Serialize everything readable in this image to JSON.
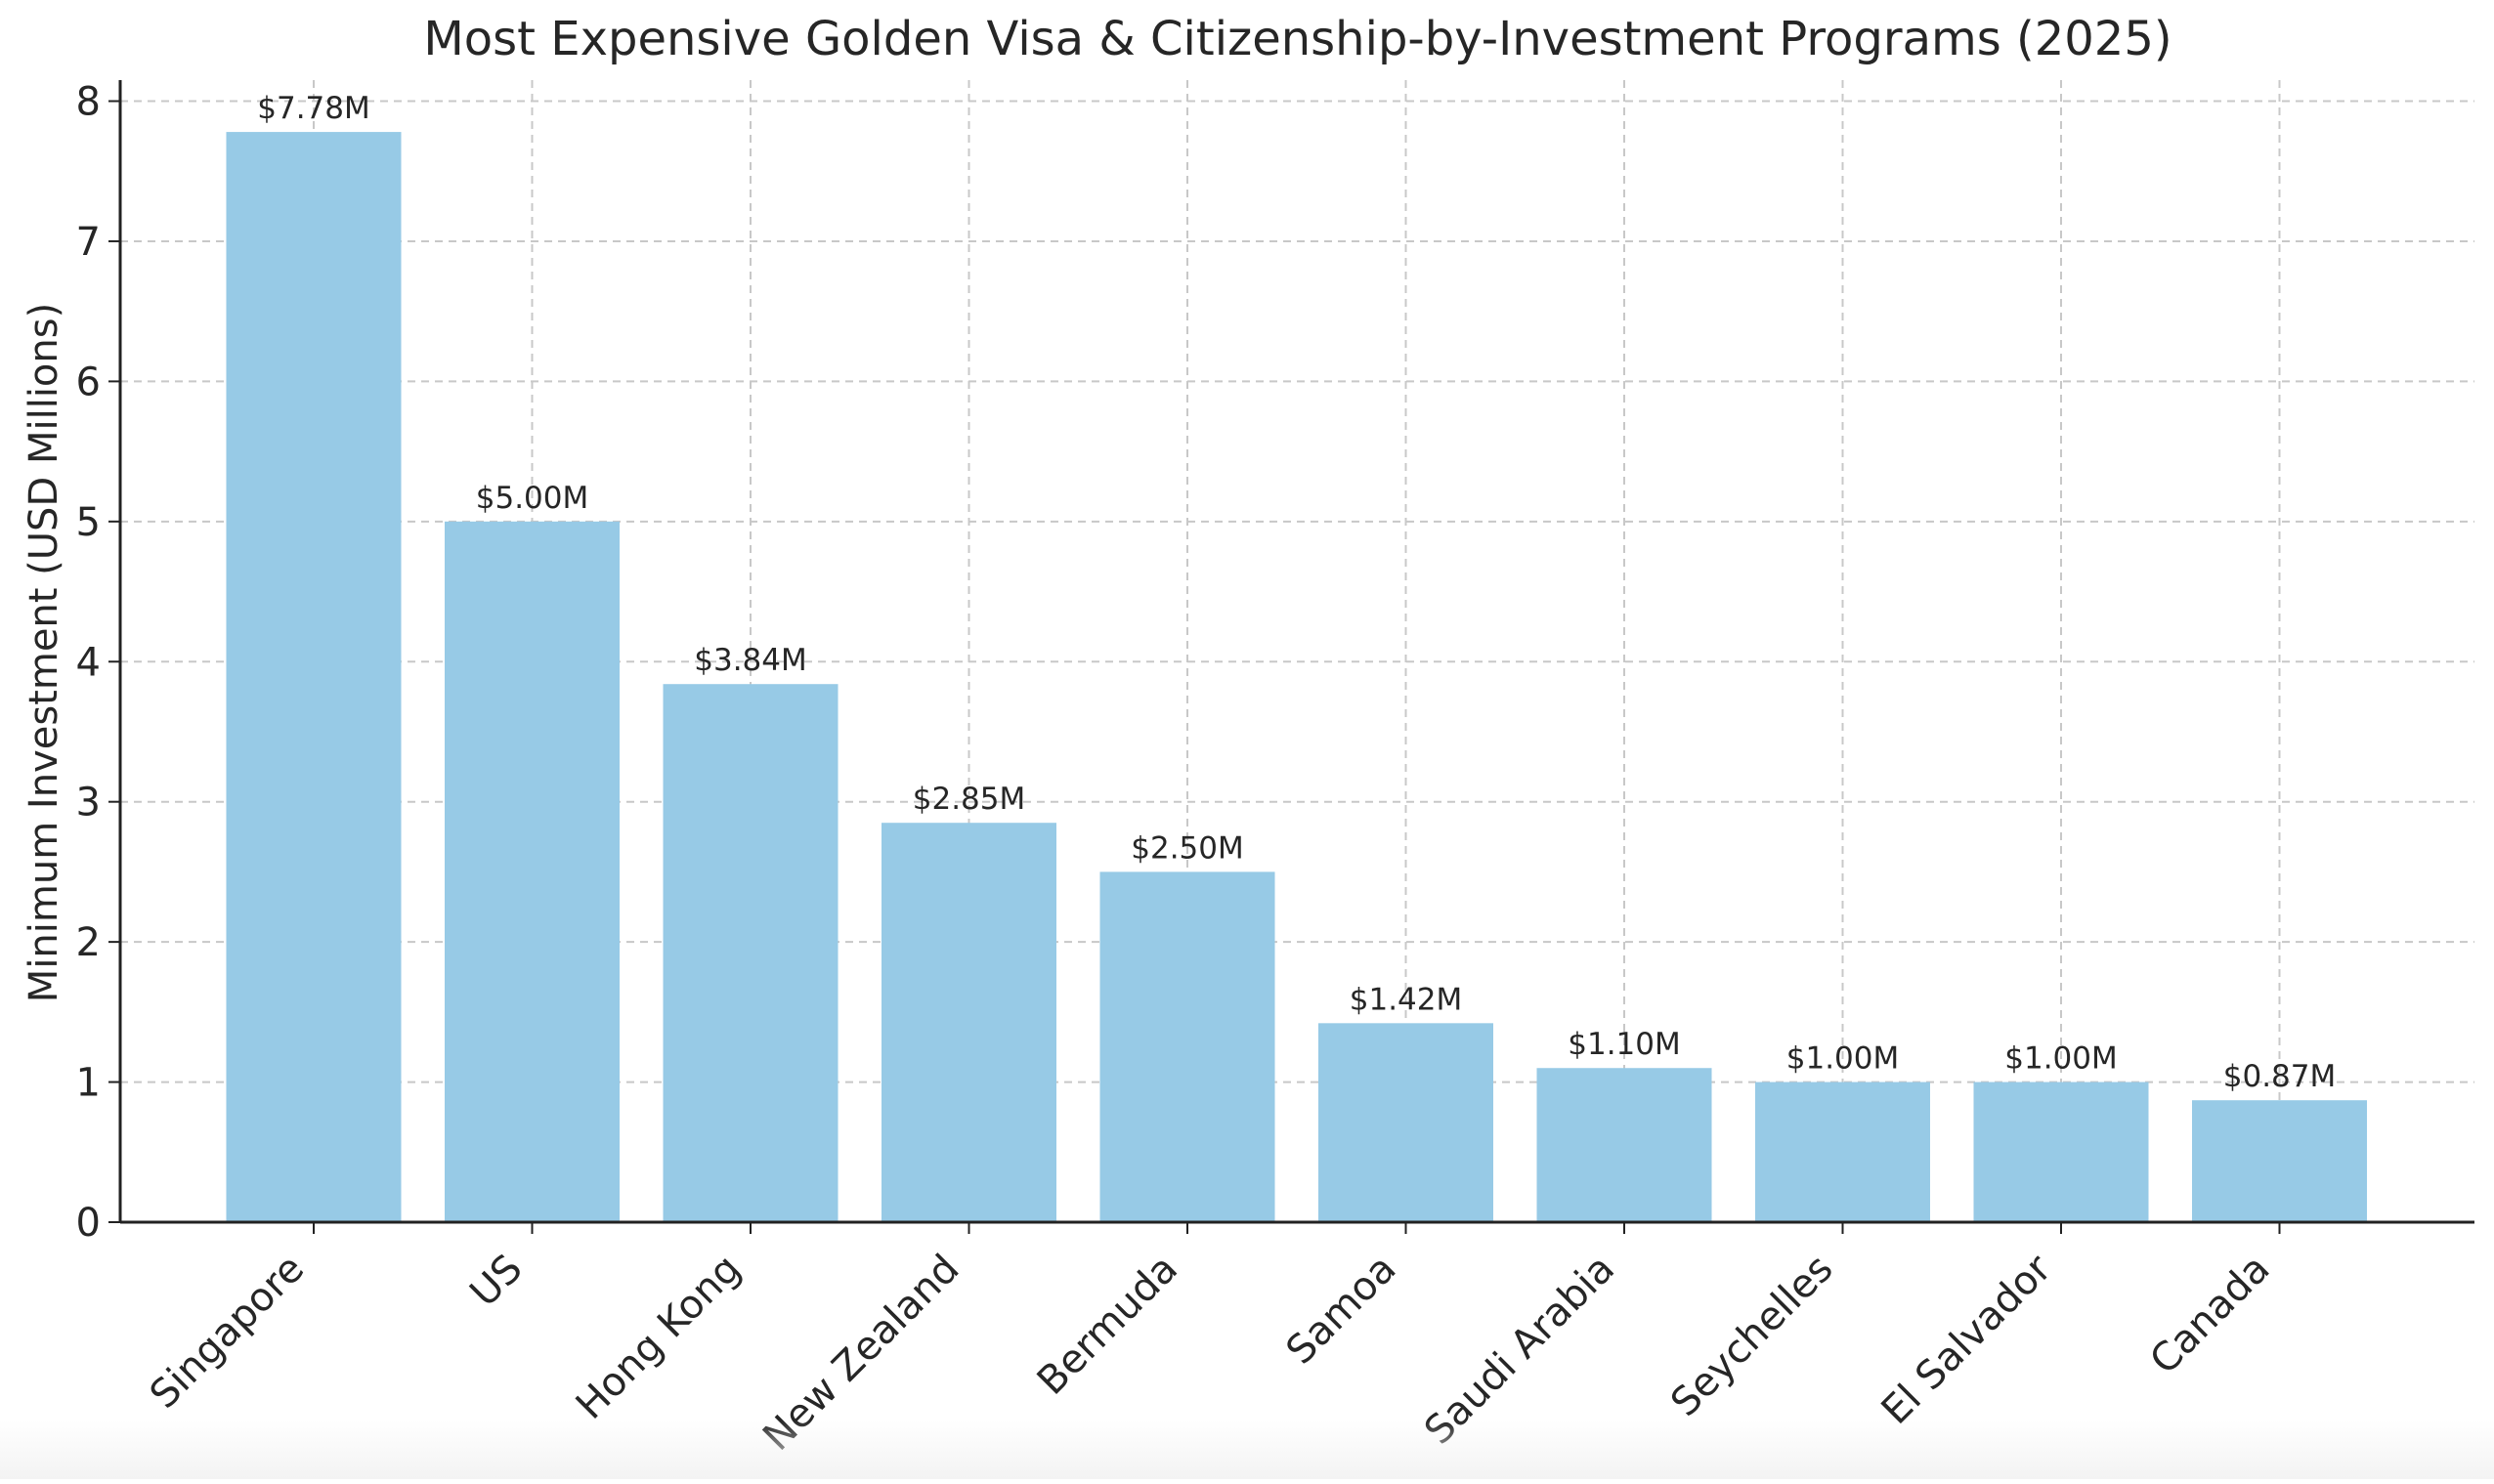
{
  "chart_data": {
    "type": "bar",
    "title": "Most Expensive Golden Visa & Citizenship-by-Investment Programs (2025)",
    "xlabel": "",
    "ylabel": "Minimum Investment (USD Millions)",
    "categories": [
      "Singapore",
      "US",
      "Hong Kong",
      "New Zealand",
      "Bermuda",
      "Samoa",
      "Saudi Arabia",
      "Seychelles",
      "El Salvador",
      "Canada"
    ],
    "values": [
      7.78,
      5.0,
      3.84,
      2.85,
      2.5,
      1.42,
      1.1,
      1.0,
      1.0,
      0.87
    ],
    "value_labels": [
      "$7.78M",
      "$5.00M",
      "$3.84M",
      "$2.85M",
      "$2.50M",
      "$1.42M",
      "$1.10M",
      "$1.00M",
      "$1.00M",
      "$0.87M"
    ],
    "ylim": [
      0,
      8.15
    ],
    "yticks": [
      0,
      1,
      2,
      3,
      4,
      5,
      6,
      7,
      8
    ],
    "grid": true,
    "legend": "none",
    "colors": {
      "bar": "#97cae6",
      "grid": "#c8c8c8",
      "axis": "#222222",
      "text": "#262626"
    }
  }
}
